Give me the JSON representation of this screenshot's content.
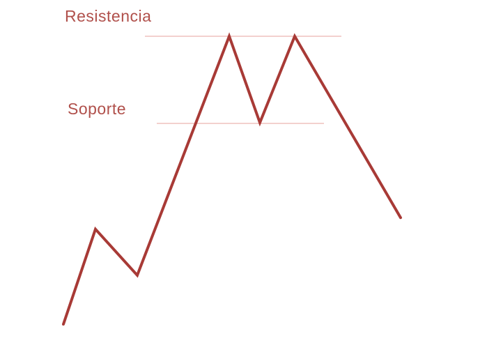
{
  "colors": {
    "line": "#a83a36",
    "guide": "#e7a29e",
    "text": "#b0504b",
    "background": "#ffffff"
  },
  "labels": {
    "resistance": "Resistencia",
    "support": "Soporte"
  },
  "pattern": {
    "shape": "double top",
    "levels": {
      "resistance": 100,
      "support": 70
    },
    "price_path": [
      0,
      33,
      17,
      100,
      70,
      100,
      37
    ]
  }
}
